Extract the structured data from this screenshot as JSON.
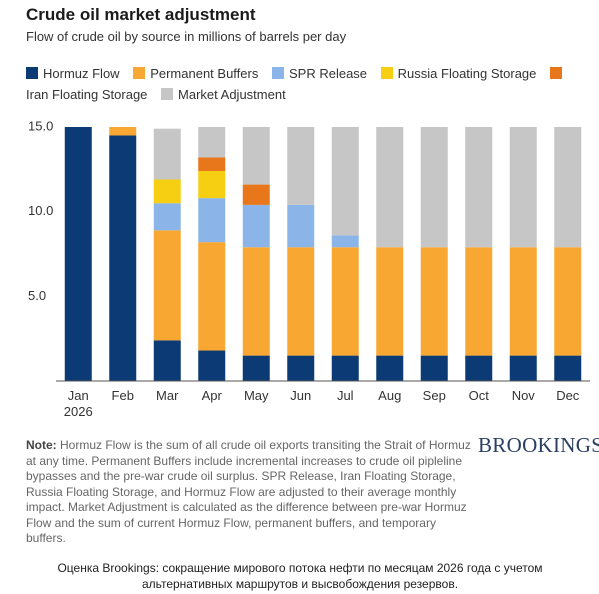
{
  "chart_data": {
    "type": "stacked_bar",
    "title": "Crude oil market adjustment",
    "subtitle": "Flow of crude oil by source in millions of barrels per day",
    "categories": [
      "Jan\n2026",
      "Feb",
      "Mar",
      "Apr",
      "May",
      "Jun",
      "Jul",
      "Aug",
      "Sep",
      "Oct",
      "Nov",
      "Dec"
    ],
    "series": [
      {
        "name": "Hormuz Flow",
        "color": "#0b3a74",
        "values": [
          15,
          14.5,
          2.4,
          1.8,
          1.5,
          1.5,
          1.5,
          1.5,
          1.5,
          1.5,
          1.5,
          1.5
        ]
      },
      {
        "name": "Permanent Buffers",
        "color": "#f8a733",
        "values": [
          0,
          0.5,
          6.5,
          6.4,
          6.4,
          6.4,
          6.4,
          6.4,
          6.4,
          6.4,
          6.4,
          6.4
        ]
      },
      {
        "name": "SPR Release",
        "color": "#8bb5e9",
        "values": [
          0,
          0,
          1.6,
          2.6,
          2.5,
          2.5,
          0.7,
          0,
          0,
          0,
          0,
          0
        ]
      },
      {
        "name": "Russia Floating Storage",
        "color": "#f6cf13",
        "values": [
          0,
          0,
          1.4,
          1.6,
          0,
          0,
          0,
          0,
          0,
          0,
          0,
          0
        ]
      },
      {
        "name": "Iran Floating Storage",
        "color": "#e8761a",
        "values": [
          0,
          0,
          0,
          0.8,
          1.2,
          0,
          0,
          0,
          0,
          0,
          0,
          0
        ]
      },
      {
        "name": "Market Adjustment",
        "color": "#c6c6c6",
        "values": [
          0,
          0,
          3.0,
          1.8,
          3.4,
          4.6,
          6.4,
          7.1,
          7.1,
          7.1,
          7.1,
          7.1
        ]
      }
    ],
    "ylim": [
      0,
      15
    ],
    "yticks": [
      {
        "value": 5,
        "label": "5.0"
      },
      {
        "value": 10,
        "label": "10.0"
      },
      {
        "value": 15,
        "label": "15.0"
      }
    ],
    "grid": false
  },
  "note": {
    "label": "Note:",
    "text": "Hormuz Flow is the sum of all crude oil exports transiting the Strait of Hormuz at any time. Permanent Buffers include incremental increases to crude oil pipleline bypasses and the pre-war crude oil surplus. SPR Release, Iran Floating Storage, Russia Floating Storage, and Hormuz Flow are adjusted to their average monthly impact. Market Adjustment is calculated as the difference between pre-war Hormuz Flow and the sum of current Hormuz Flow, permanent buffers, and temporary buffers."
  },
  "brand": "BROOKINGS",
  "caption": "Оценка Brookings: сокращение мирового потока нефти по месяцам 2026 года с учетом альтернативных маршрутов и высвобождения резервов."
}
